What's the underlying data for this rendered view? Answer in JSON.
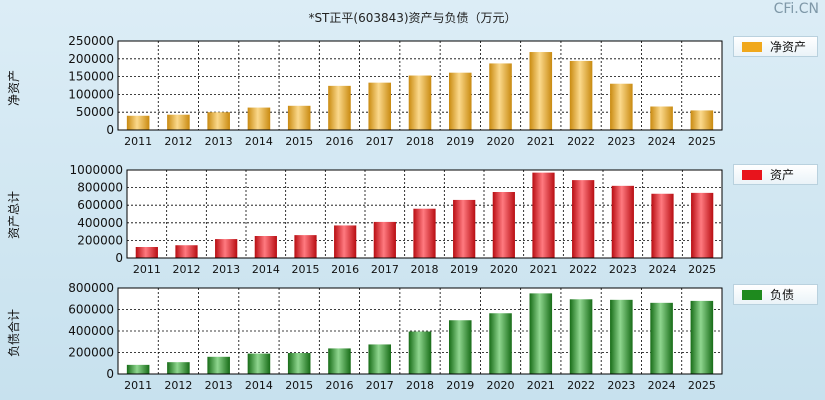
{
  "title": "*ST正平(603843)资产与负债（万元）",
  "watermark": "CFi.CN",
  "colors": {
    "equity": "#f0a81c",
    "assets": "#e8141c",
    "liabilities": "#1e8a1e"
  },
  "chart_data": [
    {
      "type": "bar",
      "ylabel": "净资产",
      "legend": "净资产",
      "legend_position": "top-right",
      "grid": true,
      "categories": [
        "2011",
        "2012",
        "2013",
        "2014",
        "2015",
        "2016",
        "2017",
        "2018",
        "2019",
        "2020",
        "2021",
        "2022",
        "2023",
        "2024",
        "2025"
      ],
      "values": [
        40000,
        43000,
        50000,
        63000,
        68000,
        124000,
        133000,
        153000,
        161000,
        187000,
        219000,
        194000,
        130000,
        66000,
        55000
      ],
      "ylim": [
        0,
        250000
      ],
      "yticks": [
        "0",
        "50000",
        "100000",
        "150000",
        "200000",
        "250000"
      ]
    },
    {
      "type": "bar",
      "ylabel": "资产总计",
      "legend": "资产",
      "legend_position": "top-right",
      "grid": true,
      "categories": [
        "2011",
        "2012",
        "2013",
        "2014",
        "2015",
        "2016",
        "2017",
        "2018",
        "2019",
        "2020",
        "2021",
        "2022",
        "2023",
        "2024",
        "2025"
      ],
      "values": [
        125000,
        145000,
        215000,
        250000,
        260000,
        370000,
        410000,
        560000,
        660000,
        750000,
        970000,
        885000,
        820000,
        730000,
        740000
      ],
      "ylim": [
        0,
        1000000
      ],
      "yticks": [
        "0",
        "200000",
        "400000",
        "600000",
        "800000",
        "1000000"
      ]
    },
    {
      "type": "bar",
      "ylabel": "负债合计",
      "legend": "负债",
      "legend_position": "top-right",
      "grid": true,
      "categories": [
        "2011",
        "2012",
        "2013",
        "2014",
        "2015",
        "2016",
        "2017",
        "2018",
        "2019",
        "2020",
        "2021",
        "2022",
        "2023",
        "2024",
        "2025"
      ],
      "values": [
        85000,
        110000,
        160000,
        190000,
        195000,
        238000,
        275000,
        395000,
        500000,
        565000,
        750000,
        695000,
        690000,
        662000,
        680000
      ],
      "ylim": [
        0,
        800000
      ],
      "yticks": [
        "0",
        "200000",
        "400000",
        "600000",
        "800000"
      ]
    }
  ]
}
